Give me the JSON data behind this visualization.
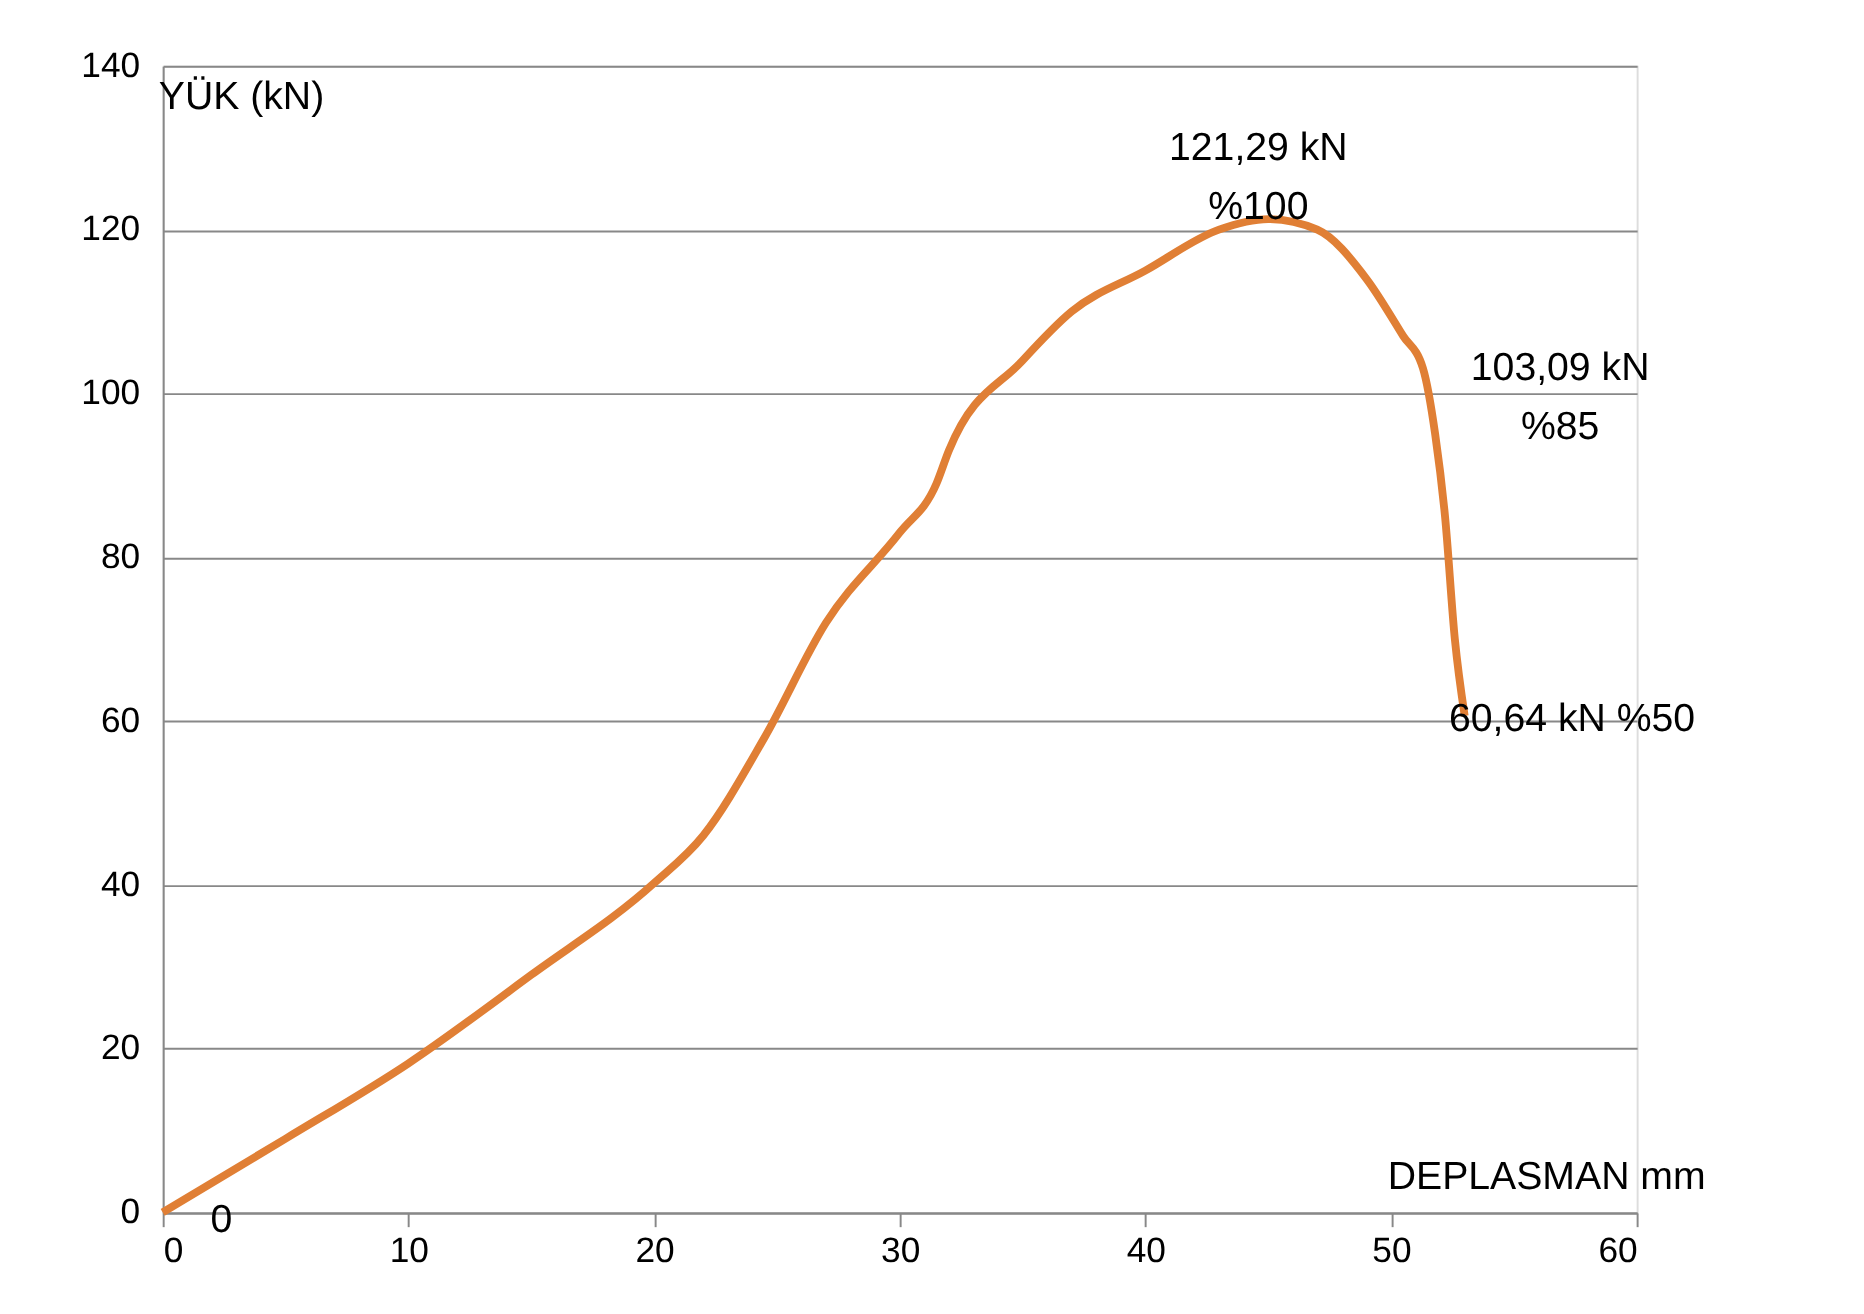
{
  "chart_data": {
    "type": "line",
    "xlabel": "DEPLASMAN mm",
    "ylabel": "YÜK (kN)",
    "x": [
      0,
      5,
      10,
      15,
      20,
      22,
      24.5,
      27,
      30,
      31.5,
      32,
      35,
      37,
      40,
      43,
      45,
      47,
      49,
      50.5,
      51.3,
      51.8,
      52.2,
      52.6,
      53
    ],
    "series": [
      {
        "color": "#e07f35",
        "values": [
          0,
          9,
          18.2,
          29,
          40.2,
          46,
          58,
          72,
          83,
          89,
          93,
          104,
          110,
          115,
          120,
          121.29,
          120,
          114,
          107,
          103.09,
          95,
          85,
          70,
          60.64
        ]
      }
    ],
    "xlim": [
      0,
      60
    ],
    "xticks": [
      0,
      10,
      20,
      30,
      40,
      50,
      60
    ],
    "ylim": [
      0,
      140
    ],
    "yticks": [
      0,
      20,
      40,
      60,
      80,
      100,
      120,
      140
    ],
    "grid": "y",
    "marker": "none",
    "line_style": "solid",
    "annotations": [
      {
        "text": "121,29 kN\n%100",
        "x": 45,
        "y": 121.29
      },
      {
        "text": "103,09 kN\n%85",
        "x": 51.3,
        "y": 103.09
      },
      {
        "text": "60,64 kN %50",
        "x": 53,
        "y": 60.64
      },
      {
        "text": "0",
        "x": 0,
        "y": 0
      }
    ]
  }
}
